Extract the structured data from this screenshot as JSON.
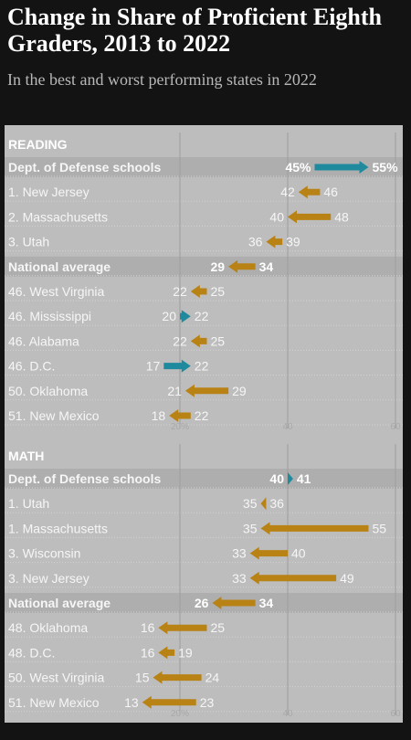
{
  "title": "Change in Share of Proficient Eighth Graders, 2013 to 2022",
  "subtitle": "In the best and worst performing states in 2022",
  "colors": {
    "increase": "#1f8a9e",
    "decrease": "#b98214",
    "panel": "#bdbdbd",
    "highlight_band": "#aeaeae",
    "row_text": "#f6f6f6"
  },
  "chart_data": [
    {
      "type": "arrow",
      "section": "READING",
      "axis_ticks": [
        "20%",
        "40",
        "60"
      ],
      "rows": [
        {
          "label": "Dept. of Defense schools",
          "from": 45,
          "to": 55,
          "from_label": "45%",
          "to_label": "55%",
          "highlight": true
        },
        {
          "label": "1. New Jersey",
          "from": 46,
          "to": 42,
          "from_label": "46",
          "to_label": "42",
          "highlight": false
        },
        {
          "label": "2. Massachusetts",
          "from": 48,
          "to": 40,
          "from_label": "48",
          "to_label": "40",
          "highlight": false
        },
        {
          "label": "3. Utah",
          "from": 39,
          "to": 36,
          "from_label": "39",
          "to_label": "36",
          "highlight": false
        },
        {
          "label": "National average",
          "from": 34,
          "to": 29,
          "from_label": "34",
          "to_label": "29",
          "highlight": true
        },
        {
          "label": "46. West Virginia",
          "from": 25,
          "to": 22,
          "from_label": "25",
          "to_label": "22",
          "highlight": false
        },
        {
          "label": "46. Mississippi",
          "from": 20,
          "to": 22,
          "from_label": "20",
          "to_label": "22",
          "highlight": false
        },
        {
          "label": "46. Alabama",
          "from": 25,
          "to": 22,
          "from_label": "25",
          "to_label": "22",
          "highlight": false
        },
        {
          "label": "46. D.C.",
          "from": 17,
          "to": 22,
          "from_label": "17",
          "to_label": "22",
          "highlight": false
        },
        {
          "label": "50. Oklahoma",
          "from": 29,
          "to": 21,
          "from_label": "29",
          "to_label": "21",
          "highlight": false
        },
        {
          "label": "51. New Mexico",
          "from": 22,
          "to": 18,
          "from_label": "22",
          "to_label": "18",
          "highlight": false
        }
      ]
    },
    {
      "type": "arrow",
      "section": "MATH",
      "axis_ticks": [
        "20%",
        "40",
        "60"
      ],
      "rows": [
        {
          "label": "Dept. of Defense schools",
          "from": 40,
          "to": 41,
          "from_label": "40",
          "to_label": "41",
          "highlight": true
        },
        {
          "label": "1. Utah",
          "from": 36,
          "to": 35,
          "from_label": "36",
          "to_label": "35",
          "highlight": false
        },
        {
          "label": "1. Massachusetts",
          "from": 55,
          "to": 35,
          "from_label": "55",
          "to_label": "35",
          "highlight": false
        },
        {
          "label": "3. Wisconsin",
          "from": 40,
          "to": 33,
          "from_label": "40",
          "to_label": "33",
          "highlight": false
        },
        {
          "label": "3. New Jersey",
          "from": 49,
          "to": 33,
          "from_label": "49",
          "to_label": "33",
          "highlight": false
        },
        {
          "label": "National average",
          "from": 34,
          "to": 26,
          "from_label": "34",
          "to_label": "26",
          "highlight": true
        },
        {
          "label": "48. Oklahoma",
          "from": 25,
          "to": 16,
          "from_label": "25",
          "to_label": "16",
          "highlight": false
        },
        {
          "label": "48. D.C.",
          "from": 19,
          "to": 16,
          "from_label": "19",
          "to_label": "16",
          "highlight": false
        },
        {
          "label": "50. West Virginia",
          "from": 24,
          "to": 15,
          "from_label": "24",
          "to_label": "15",
          "highlight": false
        },
        {
          "label": "51. New Mexico",
          "from": 23,
          "to": 13,
          "from_label": "23",
          "to_label": "13",
          "highlight": false
        }
      ]
    }
  ]
}
